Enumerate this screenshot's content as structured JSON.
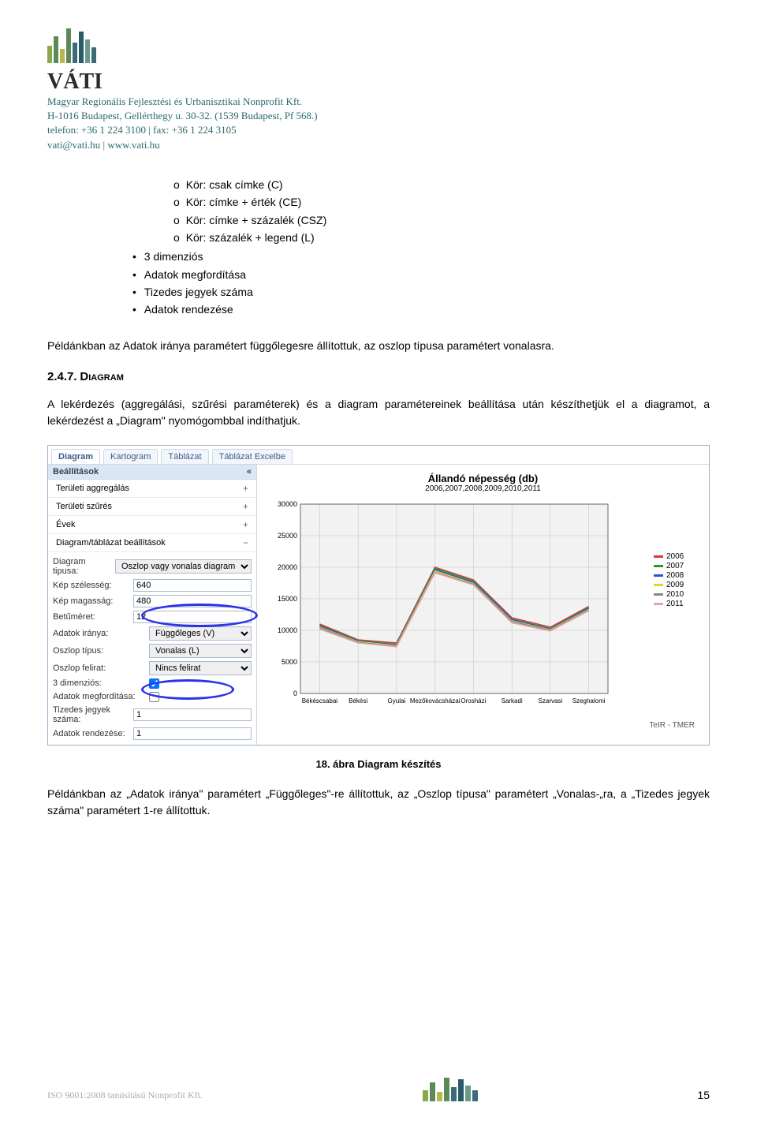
{
  "header": {
    "brand": "VÁTI",
    "line1": "Magyar Regionális Fejlesztési és Urbanisztikai Nonprofit Kft.",
    "line2": "H-1016 Budapest, Gellérthegy u. 30-32. (1539 Budapest, Pf 568.)",
    "line3": "telefon: +36 1 224 3100 | fax: +36 1 224 3105",
    "email": "vati@vati.hu",
    "site": "www.vati.hu"
  },
  "list": {
    "sub": [
      "Kör: csak címke (C)",
      "Kör: címke + érték (CE)",
      "Kör: címke + százalék (CSZ)",
      "Kör: százalék + legend (L)"
    ],
    "top": [
      "3 dimenziós",
      "Adatok megfordítása",
      "Tizedes jegyek száma",
      "Adatok rendezése"
    ]
  },
  "para1": "Példánkban az Adatok iránya paramétert függőlegesre állítottuk, az oszlop típusa paramétert vonalasra.",
  "section": {
    "num": "2.4.7.",
    "title": "Diagram"
  },
  "para2": "A lekérdezés (aggregálási, szűrési paraméterek) és a diagram paramétereinek beállítása után készíthetjük el a diagramot, a lekérdezést a „Diagram\" nyomógombbal indíthatjuk.",
  "ss": {
    "tabs": [
      "Diagram",
      "Kartogram",
      "Táblázat",
      "Táblázat Excelbe"
    ],
    "side_head": "Beállítások",
    "collapse": "«",
    "groups": [
      {
        "label": "Területi aggregálás",
        "pm": "+"
      },
      {
        "label": "Területi szűrés",
        "pm": "+"
      },
      {
        "label": "Évek",
        "pm": "+"
      },
      {
        "label": "Diagram/táblázat beállítások",
        "pm": "−"
      }
    ],
    "form": {
      "dtype_label": "Diagram tipusa:",
      "dtype_val": "Oszlop vagy vonalas diagram",
      "width_label": "Kép szélesség:",
      "width_val": "640",
      "height_label": "Kép magasság:",
      "height_val": "480",
      "fsize_label": "Betűméret:",
      "fsize_val": "12",
      "dir_label": "Adatok iránya:",
      "dir_val": "Függőleges (V)",
      "otype_label": "Oszlop típus:",
      "otype_val": "Vonalas (L)",
      "olabel_label": "Oszlop felirat:",
      "olabel_val": "Nincs felirat",
      "d3_label": "3 dimenziós:",
      "flip_label": "Adatok megfordítása:",
      "dec_label": "Tizedes jegyek száma:",
      "dec_val": "1",
      "sort_label": "Adatok rendezése:",
      "sort_val": "1"
    }
  },
  "chart": {
    "title": "Állandó népesség (db)",
    "subtitle": "2006,2007,2008,2009,2010,2011",
    "ylim": [
      0,
      30000
    ],
    "yticks": [
      0,
      5000,
      10000,
      15000,
      20000,
      25000,
      30000
    ],
    "categories": [
      "Békéscsabai",
      "Békési",
      "Gyulai",
      "Mezőkovácsházai",
      "Orosházi",
      "Sarkadi",
      "Szarvasi",
      "Szeghalomi"
    ],
    "series": [
      {
        "name": "2006",
        "color": "#d93636",
        "values": [
          11000,
          8500,
          8000,
          20000,
          18000,
          12000,
          10500,
          13800
        ]
      },
      {
        "name": "2007",
        "color": "#2a9a2a",
        "values": [
          10800,
          8400,
          7800,
          19800,
          17800,
          11800,
          10300,
          13600
        ]
      },
      {
        "name": "2008",
        "color": "#2a54d9",
        "values": [
          10700,
          8300,
          7700,
          19600,
          17600,
          11700,
          10200,
          13500
        ]
      },
      {
        "name": "2009",
        "color": "#d9d92a",
        "values": [
          10500,
          8200,
          7600,
          19400,
          17400,
          11500,
          10100,
          13300
        ]
      },
      {
        "name": "2010",
        "color": "#888888",
        "values": [
          10400,
          8100,
          7500,
          19200,
          17300,
          11400,
          10000,
          13200
        ]
      },
      {
        "name": "2011",
        "color": "#f0a0a0",
        "values": [
          10200,
          8000,
          7400,
          19100,
          17200,
          11200,
          9900,
          13100
        ]
      }
    ],
    "bg": "#f2f2f2",
    "grid": "#bfbfbf",
    "attrib": "TeIR - TMER"
  },
  "caption": "18. ábra Diagram készítés",
  "para3": "Példánkban az „Adatok iránya\" paramétert „Függőleges\"-re állítottuk, az „Oszlop típusa\" paramétert „Vonalas-„ra, a „Tizedes jegyek száma\" paramétert 1-re állítottuk.",
  "footer": {
    "iso": "ISO 9001:2008 tanúsítású Nonprofit Kft.",
    "page": "15"
  },
  "logo_bars": [
    {
      "h": 22,
      "c": "#8aa84a"
    },
    {
      "h": 34,
      "c": "#5b8a57"
    },
    {
      "h": 18,
      "c": "#b8b84a"
    },
    {
      "h": 44,
      "c": "#5b8a57"
    },
    {
      "h": 26,
      "c": "#3b6b7a"
    },
    {
      "h": 40,
      "c": "#2b5a6a"
    },
    {
      "h": 30,
      "c": "#6b9a8a"
    },
    {
      "h": 20,
      "c": "#3b6b7a"
    }
  ],
  "footer_bars": [
    {
      "h": 14,
      "c": "#8aa84a"
    },
    {
      "h": 24,
      "c": "#5b8a57"
    },
    {
      "h": 12,
      "c": "#b8b84a"
    },
    {
      "h": 30,
      "c": "#5b8a57"
    },
    {
      "h": 18,
      "c": "#3b6b7a"
    },
    {
      "h": 28,
      "c": "#2b5a6a"
    },
    {
      "h": 20,
      "c": "#6b9a8a"
    },
    {
      "h": 14,
      "c": "#3b6b7a"
    }
  ]
}
